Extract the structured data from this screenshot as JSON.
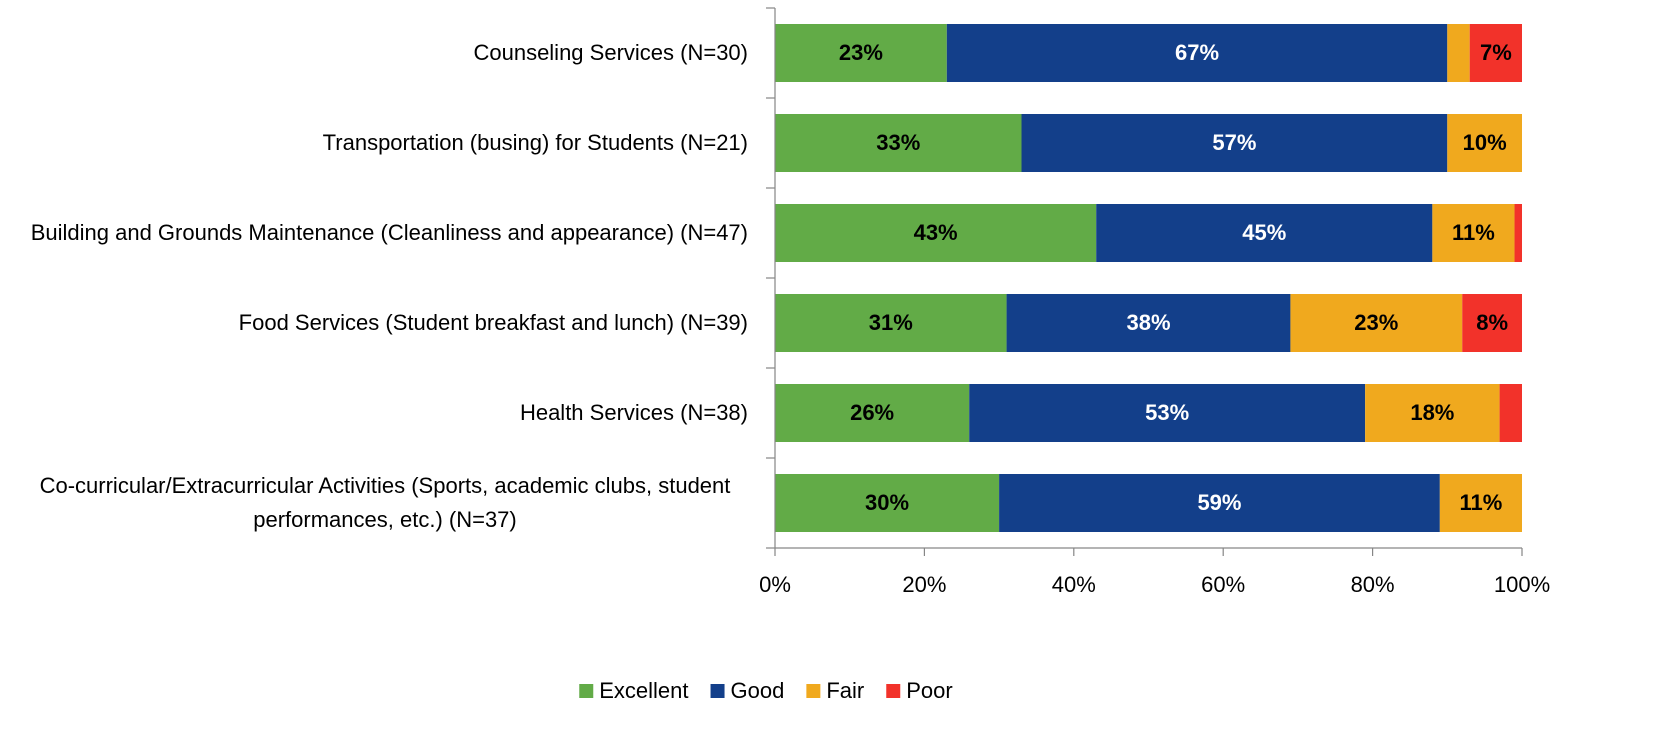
{
  "chart_data": {
    "type": "stacked_bar_horizontal",
    "categories": [
      "Counseling Services (N=30)",
      "Transportation (busing) for Students (N=21)",
      "Building and Grounds Maintenance (Cleanliness and appearance) (N=47)",
      "Food Services (Student breakfast and lunch) (N=39)",
      "Health Services (N=38)",
      "Co-curricular/Extracurricular Activities (Sports, academic clubs, student performances, etc.) (N=37)"
    ],
    "series": [
      {
        "name": "Excellent",
        "color": "#62ab47",
        "label_color": "#000000",
        "values": [
          23,
          33,
          43,
          31,
          26,
          30
        ],
        "value_labels": [
          "23%",
          "33%",
          "43%",
          "31%",
          "26%",
          "30%"
        ]
      },
      {
        "name": "Good",
        "color": "#133f8a",
        "label_color": "#ffffff",
        "values": [
          67,
          57,
          45,
          38,
          53,
          59
        ],
        "value_labels": [
          "67%",
          "57%",
          "45%",
          "38%",
          "53%",
          "59%"
        ]
      },
      {
        "name": "Fair",
        "color": "#f0a91e",
        "label_color": "#000000",
        "values": [
          3,
          10,
          11,
          23,
          18,
          11
        ],
        "value_labels": [
          null,
          "10%",
          "11%",
          "23%",
          "18%",
          "11%"
        ]
      },
      {
        "name": "Poor",
        "color": "#f2322a",
        "label_color": "#000000",
        "values": [
          7,
          0,
          1,
          8,
          3,
          0
        ],
        "value_labels": [
          "7%",
          null,
          null,
          "8%",
          null,
          null
        ]
      }
    ],
    "xlim": [
      0,
      100
    ],
    "xticks": [
      {
        "value": 0,
        "label": "0%"
      },
      {
        "value": 20,
        "label": "20%"
      },
      {
        "value": 40,
        "label": "40%"
      },
      {
        "value": 60,
        "label": "60%"
      },
      {
        "value": 80,
        "label": "80%"
      },
      {
        "value": 100,
        "label": "100%"
      }
    ],
    "legend": "bottom"
  }
}
